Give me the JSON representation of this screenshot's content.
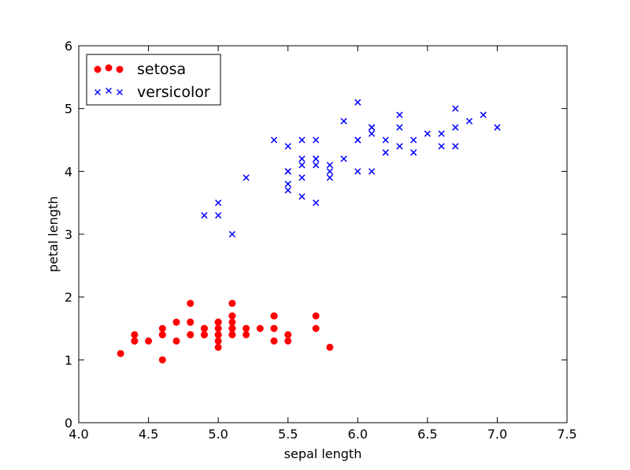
{
  "chart_data": {
    "type": "scatter",
    "title": "",
    "xlabel": "sepal length",
    "ylabel": "petal length",
    "xlim": [
      4.0,
      7.5
    ],
    "ylim": [
      0,
      6
    ],
    "xticks": [
      "4.0",
      "4.5",
      "5.0",
      "5.5",
      "6.0",
      "6.5",
      "7.0",
      "7.5"
    ],
    "yticks": [
      "0",
      "1",
      "2",
      "3",
      "4",
      "5",
      "6"
    ],
    "grid": false,
    "legend_position": "top-left",
    "series": [
      {
        "name": "setosa",
        "marker": "circle",
        "color": "#ff0000",
        "points": [
          [
            5.1,
            1.4
          ],
          [
            4.9,
            1.4
          ],
          [
            4.7,
            1.3
          ],
          [
            4.6,
            1.5
          ],
          [
            5.0,
            1.4
          ],
          [
            5.4,
            1.7
          ],
          [
            4.6,
            1.4
          ],
          [
            5.0,
            1.5
          ],
          [
            4.4,
            1.4
          ],
          [
            4.9,
            1.5
          ],
          [
            5.4,
            1.5
          ],
          [
            4.8,
            1.6
          ],
          [
            4.8,
            1.4
          ],
          [
            4.3,
            1.1
          ],
          [
            5.8,
            1.2
          ],
          [
            5.7,
            1.5
          ],
          [
            5.4,
            1.3
          ],
          [
            5.1,
            1.4
          ],
          [
            5.7,
            1.7
          ],
          [
            5.1,
            1.5
          ],
          [
            5.4,
            1.7
          ],
          [
            5.1,
            1.5
          ],
          [
            4.6,
            1.0
          ],
          [
            5.1,
            1.7
          ],
          [
            4.8,
            1.9
          ],
          [
            5.0,
            1.6
          ],
          [
            5.0,
            1.6
          ],
          [
            5.2,
            1.5
          ],
          [
            5.2,
            1.4
          ],
          [
            4.7,
            1.6
          ],
          [
            4.8,
            1.6
          ],
          [
            5.4,
            1.5
          ],
          [
            5.2,
            1.5
          ],
          [
            5.5,
            1.4
          ],
          [
            4.9,
            1.5
          ],
          [
            5.0,
            1.2
          ],
          [
            5.5,
            1.3
          ],
          [
            4.9,
            1.4
          ],
          [
            4.4,
            1.3
          ],
          [
            5.1,
            1.5
          ],
          [
            5.0,
            1.3
          ],
          [
            4.5,
            1.3
          ],
          [
            4.4,
            1.3
          ],
          [
            5.0,
            1.6
          ],
          [
            5.1,
            1.9
          ],
          [
            4.8,
            1.4
          ],
          [
            5.1,
            1.6
          ],
          [
            4.6,
            1.4
          ],
          [
            5.3,
            1.5
          ],
          [
            5.0,
            1.4
          ]
        ]
      },
      {
        "name": "versicolor",
        "marker": "x",
        "color": "#0000ff",
        "points": [
          [
            7.0,
            4.7
          ],
          [
            6.4,
            4.5
          ],
          [
            6.9,
            4.9
          ],
          [
            5.5,
            4.0
          ],
          [
            6.5,
            4.6
          ],
          [
            5.7,
            4.5
          ],
          [
            6.3,
            4.7
          ],
          [
            4.9,
            3.3
          ],
          [
            6.6,
            4.6
          ],
          [
            5.2,
            3.9
          ],
          [
            5.0,
            3.5
          ],
          [
            5.9,
            4.2
          ],
          [
            6.0,
            4.0
          ],
          [
            6.1,
            4.7
          ],
          [
            5.6,
            3.6
          ],
          [
            6.7,
            4.4
          ],
          [
            5.6,
            4.5
          ],
          [
            5.8,
            4.1
          ],
          [
            6.2,
            4.5
          ],
          [
            5.6,
            3.9
          ],
          [
            5.9,
            4.8
          ],
          [
            6.1,
            4.0
          ],
          [
            6.3,
            4.9
          ],
          [
            6.1,
            4.7
          ],
          [
            6.4,
            4.3
          ],
          [
            6.6,
            4.4
          ],
          [
            6.8,
            4.8
          ],
          [
            6.7,
            5.0
          ],
          [
            6.0,
            4.5
          ],
          [
            5.7,
            3.5
          ],
          [
            5.5,
            3.8
          ],
          [
            5.5,
            3.7
          ],
          [
            5.8,
            3.9
          ],
          [
            6.0,
            5.1
          ],
          [
            5.4,
            4.5
          ],
          [
            6.0,
            4.5
          ],
          [
            6.7,
            4.7
          ],
          [
            6.3,
            4.4
          ],
          [
            5.6,
            4.1
          ],
          [
            5.5,
            4.0
          ],
          [
            5.5,
            4.4
          ],
          [
            6.1,
            4.6
          ],
          [
            5.8,
            4.0
          ],
          [
            5.0,
            3.3
          ],
          [
            5.6,
            4.2
          ],
          [
            5.7,
            4.2
          ],
          [
            5.7,
            4.2
          ],
          [
            6.2,
            4.3
          ],
          [
            5.1,
            3.0
          ],
          [
            5.7,
            4.1
          ]
        ]
      }
    ]
  }
}
